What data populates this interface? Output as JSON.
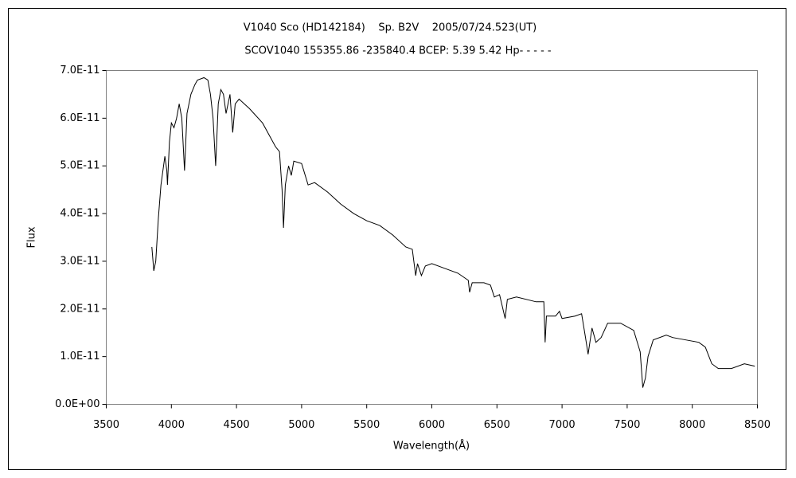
{
  "chart_data": {
    "type": "line",
    "title": "V1040 Sco (HD142184)    Sp. B2V    2005/07/24.523(UT)",
    "subtitle": "SCOV1040 155355.86 -235840.4 BCEP: 5.39 5.42 Hp- - - - -",
    "x_label": "Wavelength(Å)",
    "y_label": "Flux",
    "color": "#000000",
    "grid": false,
    "xlim": [
      3500,
      8500
    ],
    "xticks": [
      3500,
      4000,
      4500,
      5000,
      5500,
      6000,
      6500,
      7000,
      7500,
      8000,
      8500
    ],
    "ylim": [
      0,
      7e-11
    ],
    "yticks": [
      {
        "value": 0,
        "label": "0.0E+00"
      },
      {
        "value": 1e-11,
        "label": "1.0E-11"
      },
      {
        "value": 2e-11,
        "label": "2.0E-11"
      },
      {
        "value": 3e-11,
        "label": "3.0E-11"
      },
      {
        "value": 4e-11,
        "label": "4.0E-11"
      },
      {
        "value": 5e-11,
        "label": "5.0E-11"
      },
      {
        "value": 6e-11,
        "label": "6.0E-11"
      },
      {
        "value": 7e-11,
        "label": "7.0E-11"
      }
    ],
    "x": [
      3850,
      3865,
      3880,
      3900,
      3920,
      3950,
      3965,
      3970,
      3985,
      4000,
      4020,
      4040,
      4060,
      4080,
      4101,
      4120,
      4150,
      4180,
      4200,
      4250,
      4280,
      4300,
      4320,
      4340,
      4360,
      4380,
      4400,
      4420,
      4450,
      4471,
      4490,
      4520,
      4600,
      4700,
      4800,
      4830,
      4850,
      4861,
      4875,
      4900,
      4921,
      4940,
      5000,
      5050,
      5100,
      5200,
      5300,
      5400,
      5500,
      5600,
      5700,
      5800,
      5850,
      5876,
      5890,
      5920,
      5950,
      6000,
      6100,
      6200,
      6280,
      6290,
      6310,
      6400,
      6450,
      6480,
      6520,
      6563,
      6580,
      6650,
      6800,
      6860,
      6870,
      6880,
      6950,
      6980,
      7000,
      7100,
      7150,
      7180,
      7200,
      7230,
      7260,
      7300,
      7350,
      7450,
      7550,
      7600,
      7620,
      7640,
      7660,
      7700,
      7800,
      7850,
      7950,
      8050,
      8100,
      8150,
      8200,
      8300,
      8400,
      8480
    ],
    "values": [
      3.3e-11,
      2.8e-11,
      3e-11,
      3.9e-11,
      4.6e-11,
      5.2e-11,
      4.9e-11,
      4.6e-11,
      5.5e-11,
      5.9e-11,
      5.8e-11,
      6e-11,
      6.3e-11,
      6e-11,
      4.9e-11,
      6.1e-11,
      6.5e-11,
      6.7e-11,
      6.8e-11,
      6.85e-11,
      6.8e-11,
      6.5e-11,
      6e-11,
      5e-11,
      6.3e-11,
      6.6e-11,
      6.5e-11,
      6.1e-11,
      6.5e-11,
      5.7e-11,
      6.3e-11,
      6.4e-11,
      6.2e-11,
      5.9e-11,
      5.4e-11,
      5.3e-11,
      4.5e-11,
      3.7e-11,
      4.6e-11,
      5e-11,
      4.8e-11,
      5.1e-11,
      5.05e-11,
      4.6e-11,
      4.65e-11,
      4.45e-11,
      4.2e-11,
      4e-11,
      3.85e-11,
      3.75e-11,
      3.55e-11,
      3.3e-11,
      3.25e-11,
      2.7e-11,
      2.95e-11,
      2.7e-11,
      2.9e-11,
      2.95e-11,
      2.85e-11,
      2.75e-11,
      2.6e-11,
      2.35e-11,
      2.55e-11,
      2.55e-11,
      2.5e-11,
      2.25e-11,
      2.3e-11,
      1.8e-11,
      2.2e-11,
      2.25e-11,
      2.15e-11,
      2.15e-11,
      1.3e-11,
      1.85e-11,
      1.85e-11,
      1.95e-11,
      1.8e-11,
      1.85e-11,
      1.9e-11,
      1.4e-11,
      1.05e-11,
      1.6e-11,
      1.3e-11,
      1.4e-11,
      1.7e-11,
      1.7e-11,
      1.55e-11,
      1.1e-11,
      3.5e-12,
      5.5e-12,
      1e-11,
      1.35e-11,
      1.45e-11,
      1.4e-11,
      1.35e-11,
      1.3e-11,
      1.2e-11,
      8.5e-12,
      7.5e-12,
      7.5e-12,
      8.5e-12,
      8e-12
    ]
  }
}
